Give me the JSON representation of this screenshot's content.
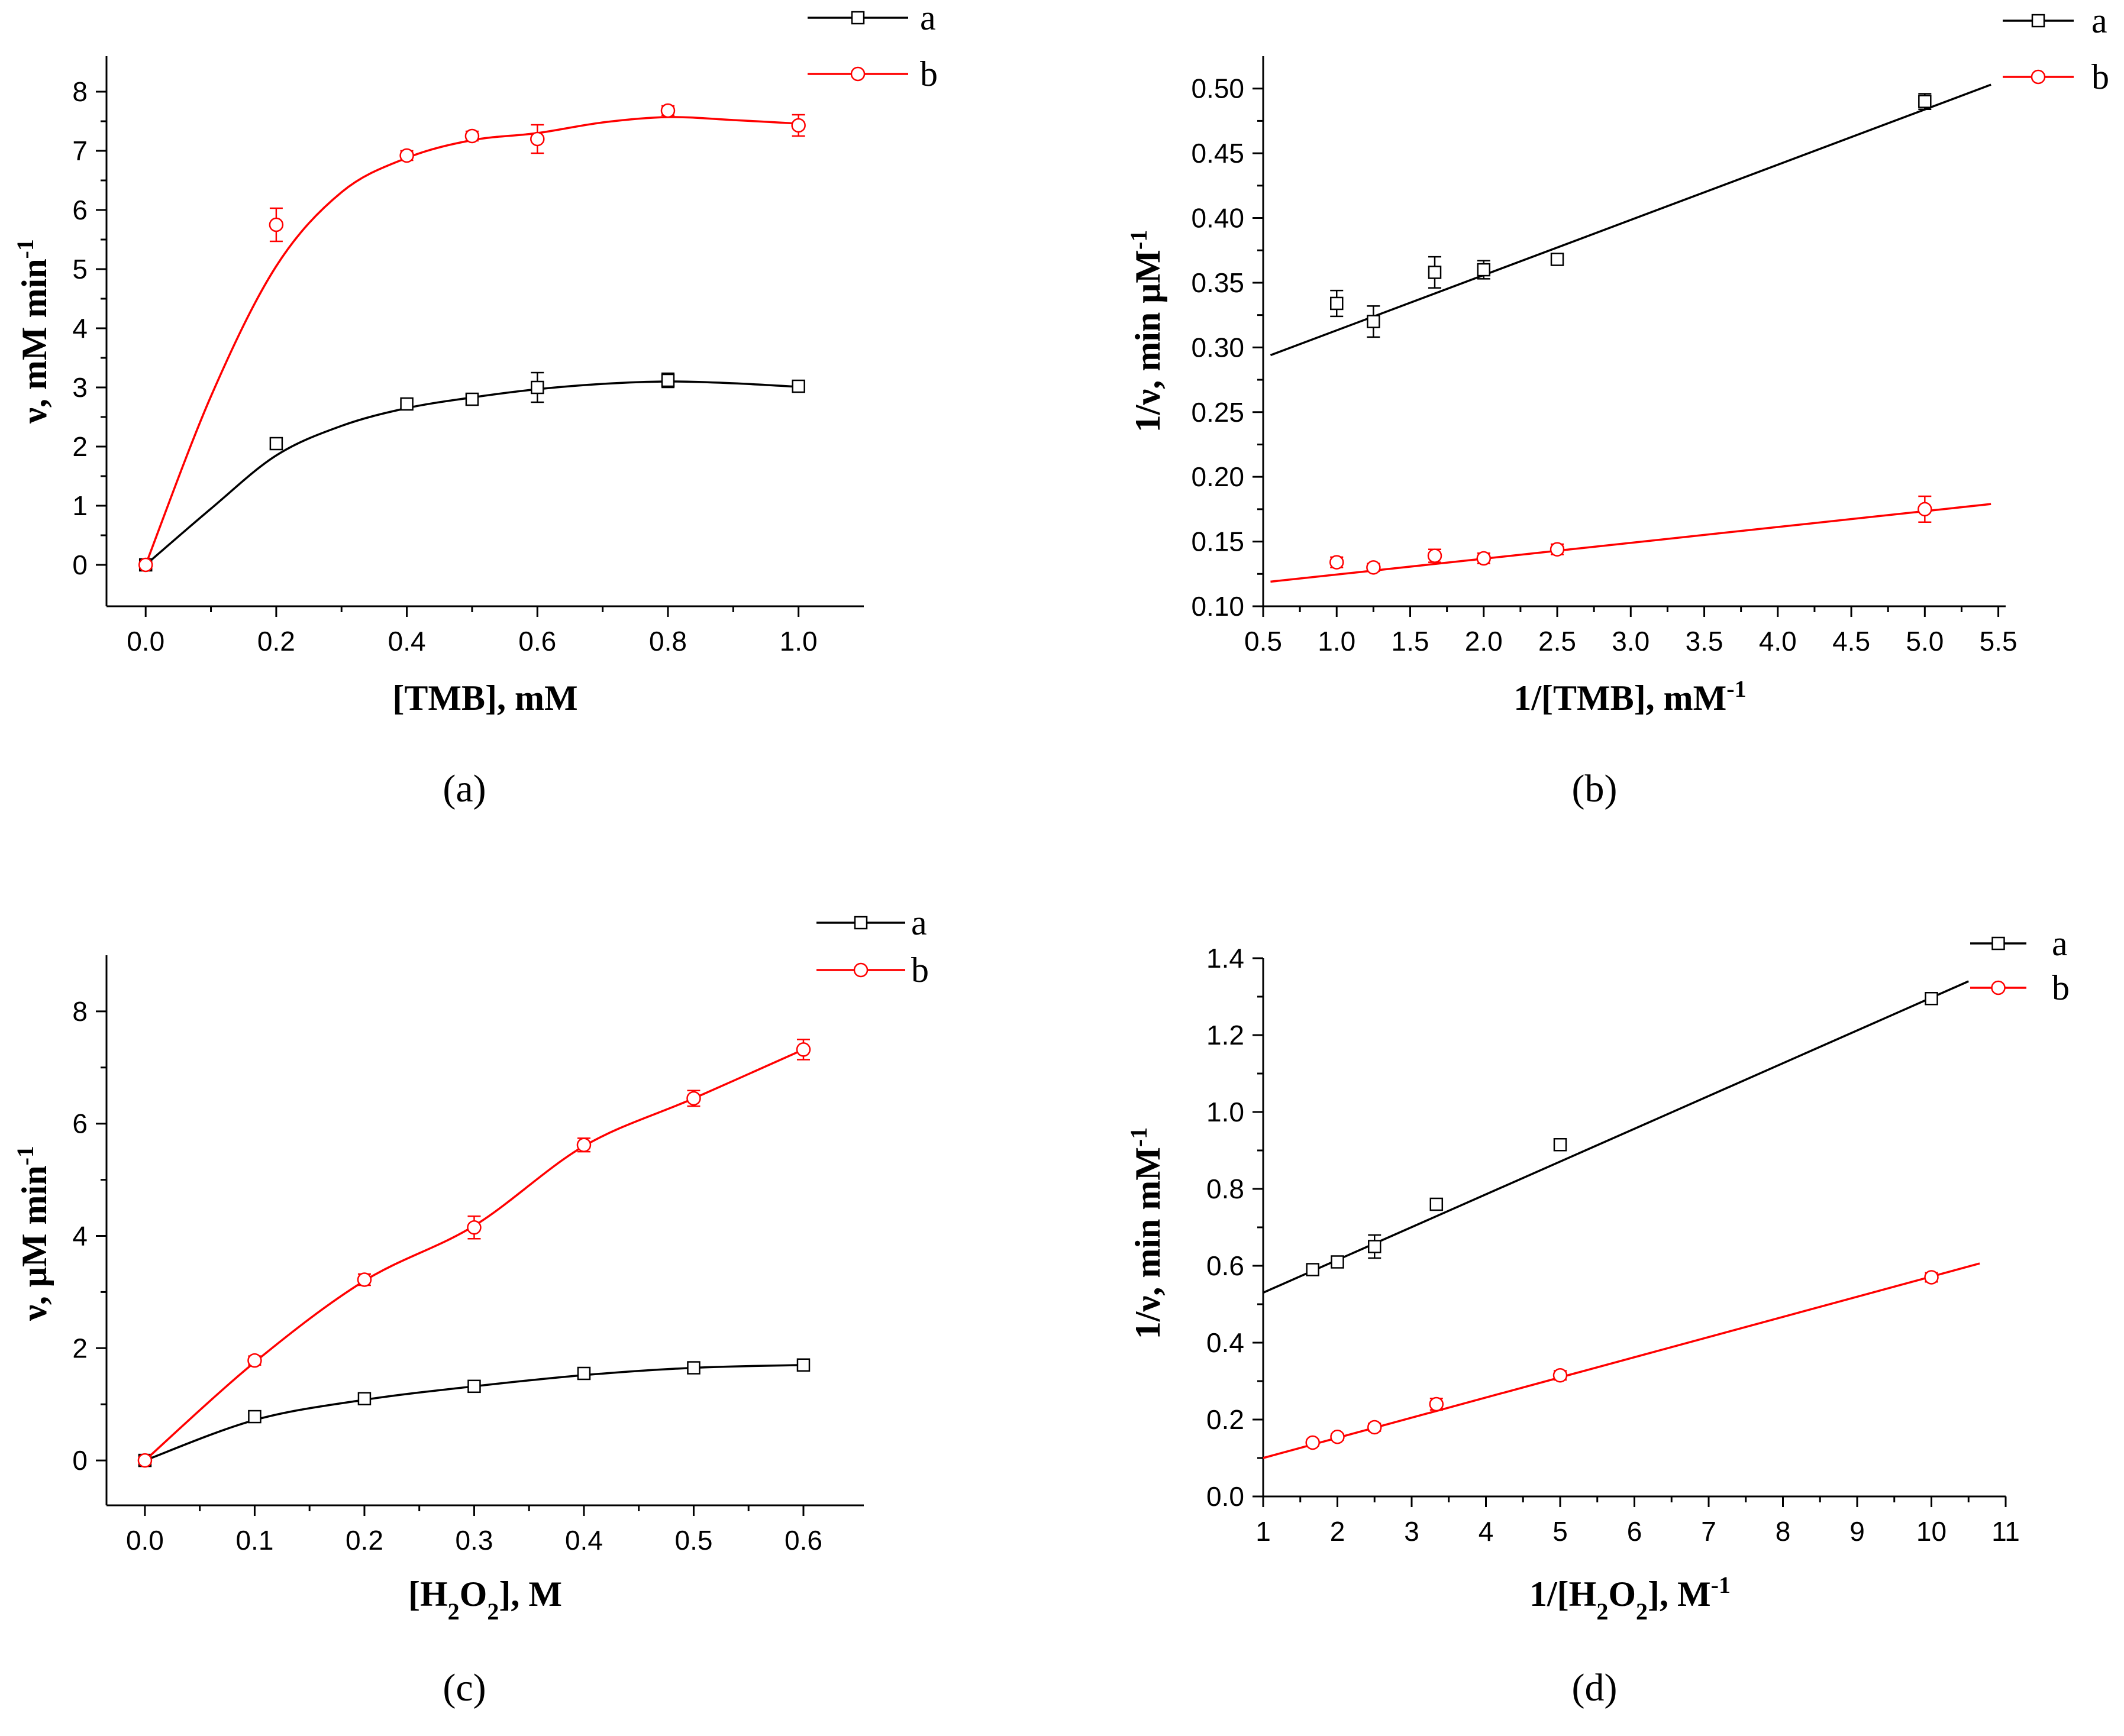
{
  "chart_data": [
    {
      "id": "a",
      "type": "scatter",
      "caption": "(a)",
      "xlabel": "[TMB], mM",
      "ylabel": "ν, mM min-1",
      "xlim": [
        -0.06,
        1.1
      ],
      "ylim": [
        -0.7,
        8.6
      ],
      "xticks": [
        0.0,
        0.2,
        0.4,
        0.6,
        0.8,
        1.0
      ],
      "xtick_labels": [
        "0.0",
        "0.2",
        "0.4",
        "0.6",
        "0.8",
        "1.0"
      ],
      "yticks": [
        0,
        1,
        2,
        3,
        4,
        5,
        6,
        7,
        8
      ],
      "ytick_labels": [
        "0",
        "1",
        "2",
        "3",
        "4",
        "5",
        "6",
        "7",
        "8"
      ],
      "legend": "top-right",
      "series": [
        {
          "name": "a",
          "color": "#000000",
          "marker": "square",
          "x": [
            0,
            0.2,
            0.4,
            0.5,
            0.6,
            0.8,
            1.0
          ],
          "y": [
            0,
            2.05,
            2.72,
            2.8,
            3.0,
            3.12,
            3.02
          ],
          "err": [
            0.05,
            0.08,
            0.08,
            0.08,
            0.25,
            0.12,
            0.06
          ],
          "fit": {
            "kind": "smooth",
            "x": [
              0,
              0.1,
              0.2,
              0.3,
              0.4,
              0.5,
              0.6,
              0.7,
              0.8,
              0.9,
              1.0
            ],
            "y": [
              0,
              0.95,
              1.85,
              2.35,
              2.65,
              2.83,
              2.97,
              3.06,
              3.1,
              3.07,
              3.01
            ]
          }
        },
        {
          "name": "b",
          "color": "#ff0000",
          "marker": "circle",
          "x": [
            0,
            0.2,
            0.4,
            0.5,
            0.6,
            0.8,
            1.0
          ],
          "y": [
            0,
            5.75,
            6.92,
            7.25,
            7.2,
            7.68,
            7.43
          ],
          "err": [
            0.05,
            0.28,
            0.08,
            0.08,
            0.24,
            0.08,
            0.18
          ],
          "fit": {
            "kind": "smooth",
            "x": [
              0,
              0.1,
              0.2,
              0.3,
              0.4,
              0.5,
              0.6,
              0.7,
              0.8,
              0.9,
              1.0
            ],
            "y": [
              0,
              2.85,
              5.05,
              6.3,
              6.88,
              7.18,
              7.3,
              7.48,
              7.57,
              7.52,
              7.46
            ]
          }
        }
      ]
    },
    {
      "id": "b",
      "type": "scatter",
      "caption": "(b)",
      "xlabel": "1/[TMB], mM-1",
      "ylabel": "1/ν, min μM-1",
      "xlim": [
        0.5,
        5.55
      ],
      "ylim": [
        0.1,
        0.525
      ],
      "xticks": [
        0.5,
        1.0,
        1.5,
        2.0,
        2.5,
        3.0,
        3.5,
        4.0,
        4.5,
        5.0,
        5.5
      ],
      "xtick_labels": [
        "0.5",
        "1.0",
        "1.5",
        "2.0",
        "2.5",
        "3.0",
        "3.5",
        "4.0",
        "4.5",
        "5.0",
        "5.5"
      ],
      "yticks": [
        0.1,
        0.15,
        0.2,
        0.25,
        0.3,
        0.35,
        0.4,
        0.45,
        0.5
      ],
      "ytick_labels": [
        "0.10",
        "0.15",
        "0.20",
        "0.25",
        "0.30",
        "0.35",
        "0.40",
        "0.45",
        "0.50"
      ],
      "legend": "top-right",
      "series": [
        {
          "name": "a",
          "color": "#000000",
          "marker": "square",
          "x": [
            1.0,
            1.25,
            1.667,
            2.0,
            2.5,
            5.0
          ],
          "y": [
            0.334,
            0.32,
            0.358,
            0.36,
            0.368,
            0.49
          ],
          "err": [
            0.01,
            0.012,
            0.012,
            0.007,
            0.003,
            0.006
          ],
          "fit": {
            "kind": "line",
            "x": [
              0.55,
              5.45
            ],
            "y": [
              0.294,
              0.503
            ]
          }
        },
        {
          "name": "b",
          "color": "#ff0000",
          "marker": "circle",
          "x": [
            1.0,
            1.25,
            1.667,
            2.0,
            2.5,
            5.0
          ],
          "y": [
            0.134,
            0.13,
            0.139,
            0.137,
            0.144,
            0.175
          ],
          "err": [
            0.004,
            0.003,
            0.005,
            0.004,
            0.004,
            0.01
          ],
          "fit": {
            "kind": "line",
            "x": [
              0.55,
              5.45
            ],
            "y": [
              0.119,
              0.179
            ]
          }
        }
      ]
    },
    {
      "id": "c",
      "type": "scatter",
      "caption": "(c)",
      "xlabel": "[H2O2], M",
      "ylabel": "ν, μM min-1",
      "xlim": [
        -0.035,
        0.655
      ],
      "ylim": [
        -0.8,
        9.0
      ],
      "xticks": [
        0.0,
        0.1,
        0.2,
        0.3,
        0.4,
        0.5,
        0.6
      ],
      "xtick_labels": [
        "0.0",
        "0.1",
        "0.2",
        "0.3",
        "0.4",
        "0.5",
        "0.6"
      ],
      "yticks": [
        0,
        2,
        4,
        6,
        8
      ],
      "ytick_labels": [
        "0",
        "2",
        "4",
        "6",
        "8"
      ],
      "legend": "top-right",
      "series": [
        {
          "name": "a",
          "color": "#000000",
          "marker": "square",
          "x": [
            0,
            0.1,
            0.2,
            0.3,
            0.4,
            0.5,
            0.6
          ],
          "y": [
            0,
            0.78,
            1.1,
            1.32,
            1.55,
            1.65,
            1.7
          ],
          "err": [
            0.05,
            0.06,
            0.08,
            0.06,
            0.1,
            0.08,
            0.08
          ],
          "fit": {
            "kind": "smooth",
            "x": [
              0,
              0.1,
              0.2,
              0.3,
              0.4,
              0.5,
              0.6
            ],
            "y": [
              0,
              0.72,
              1.08,
              1.32,
              1.52,
              1.65,
              1.7
            ]
          }
        },
        {
          "name": "b",
          "color": "#ff0000",
          "marker": "circle",
          "x": [
            0,
            0.1,
            0.2,
            0.3,
            0.4,
            0.5,
            0.6
          ],
          "y": [
            0,
            1.78,
            3.22,
            4.15,
            5.62,
            6.45,
            7.32
          ],
          "err": [
            0.05,
            0.08,
            0.1,
            0.2,
            0.12,
            0.14,
            0.18
          ],
          "fit": {
            "kind": "smooth",
            "x": [
              0,
              0.1,
              0.2,
              0.3,
              0.4,
              0.5,
              0.6
            ],
            "y": [
              0,
              1.75,
              3.2,
              4.18,
              5.6,
              6.45,
              7.32
            ]
          }
        }
      ]
    },
    {
      "id": "d",
      "type": "scatter",
      "caption": "(d)",
      "xlabel": "1/[H2O2], M-1",
      "ylabel": "1/ν, min mM-1",
      "xlim": [
        1,
        11
      ],
      "ylim": [
        0.0,
        1.4
      ],
      "xticks": [
        1,
        2,
        3,
        4,
        5,
        6,
        7,
        8,
        9,
        10,
        11
      ],
      "xtick_labels": [
        "1",
        "2",
        "3",
        "4",
        "5",
        "6",
        "7",
        "8",
        "9",
        "10",
        "11"
      ],
      "yticks": [
        0.0,
        0.2,
        0.4,
        0.6,
        0.8,
        1.0,
        1.2,
        1.4
      ],
      "ytick_labels": [
        "0.0",
        "0.2",
        "0.4",
        "0.6",
        "0.8",
        "1.0",
        "1.2",
        "1.4"
      ],
      "legend": "top-right",
      "series": [
        {
          "name": "a",
          "color": "#000000",
          "marker": "square",
          "x": [
            1.667,
            2.0,
            2.5,
            3.333,
            5.0,
            10.0
          ],
          "y": [
            0.59,
            0.61,
            0.65,
            0.76,
            0.915,
            1.295
          ],
          "err": [
            0.01,
            0.01,
            0.03,
            0.01,
            0.015,
            0.012
          ],
          "fit": {
            "kind": "line",
            "x": [
              1.0,
              10.5
            ],
            "y": [
              0.53,
              1.34
            ]
          }
        },
        {
          "name": "b",
          "color": "#ff0000",
          "marker": "circle",
          "x": [
            1.667,
            2.0,
            2.5,
            3.333,
            5.0,
            10.0
          ],
          "y": [
            0.14,
            0.155,
            0.18,
            0.24,
            0.315,
            0.57
          ],
          "err": [
            0.008,
            0.008,
            0.01,
            0.015,
            0.012,
            0.012
          ],
          "fit": {
            "kind": "line",
            "x": [
              1.0,
              10.65
            ],
            "y": [
              0.1,
              0.606
            ]
          }
        }
      ]
    }
  ]
}
